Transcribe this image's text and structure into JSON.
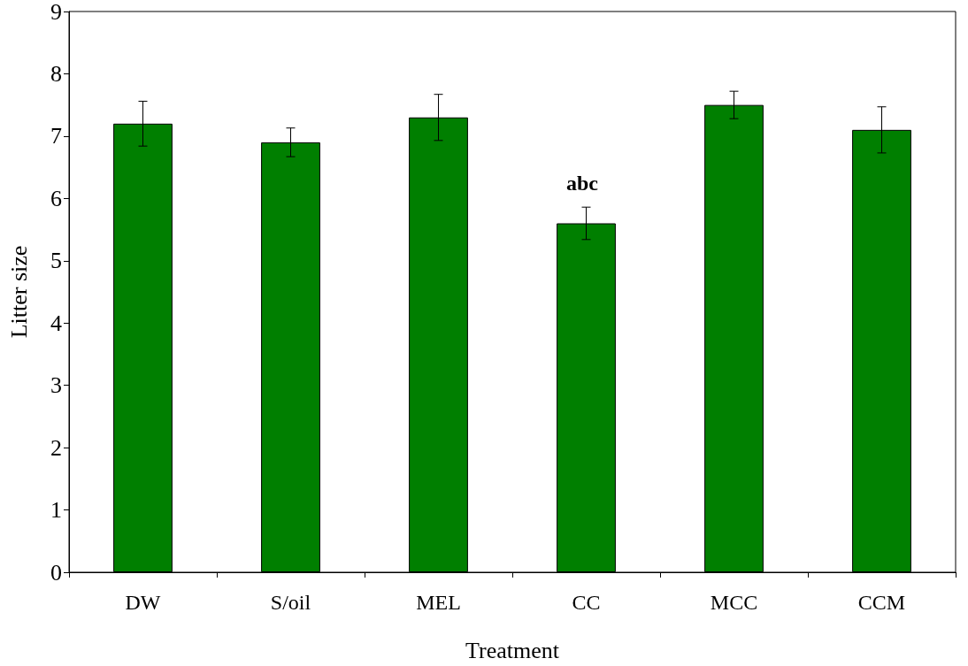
{
  "chart_data": {
    "type": "bar",
    "xlabel": "Treatment",
    "ylabel": "Litter size",
    "categories": [
      "DW",
      "S/oil",
      "MEL",
      "CC",
      "MCC",
      "CCM"
    ],
    "values": [
      7.2,
      6.9,
      7.3,
      5.6,
      7.5,
      7.1
    ],
    "errors": [
      0.36,
      0.23,
      0.37,
      0.26,
      0.22,
      0.37
    ],
    "color": "#007f00",
    "ylim": [
      0,
      9
    ],
    "yticks": [
      0,
      1,
      2,
      3,
      4,
      5,
      6,
      7,
      8,
      9
    ],
    "grid": false,
    "annotations": [
      "abc"
    ]
  }
}
